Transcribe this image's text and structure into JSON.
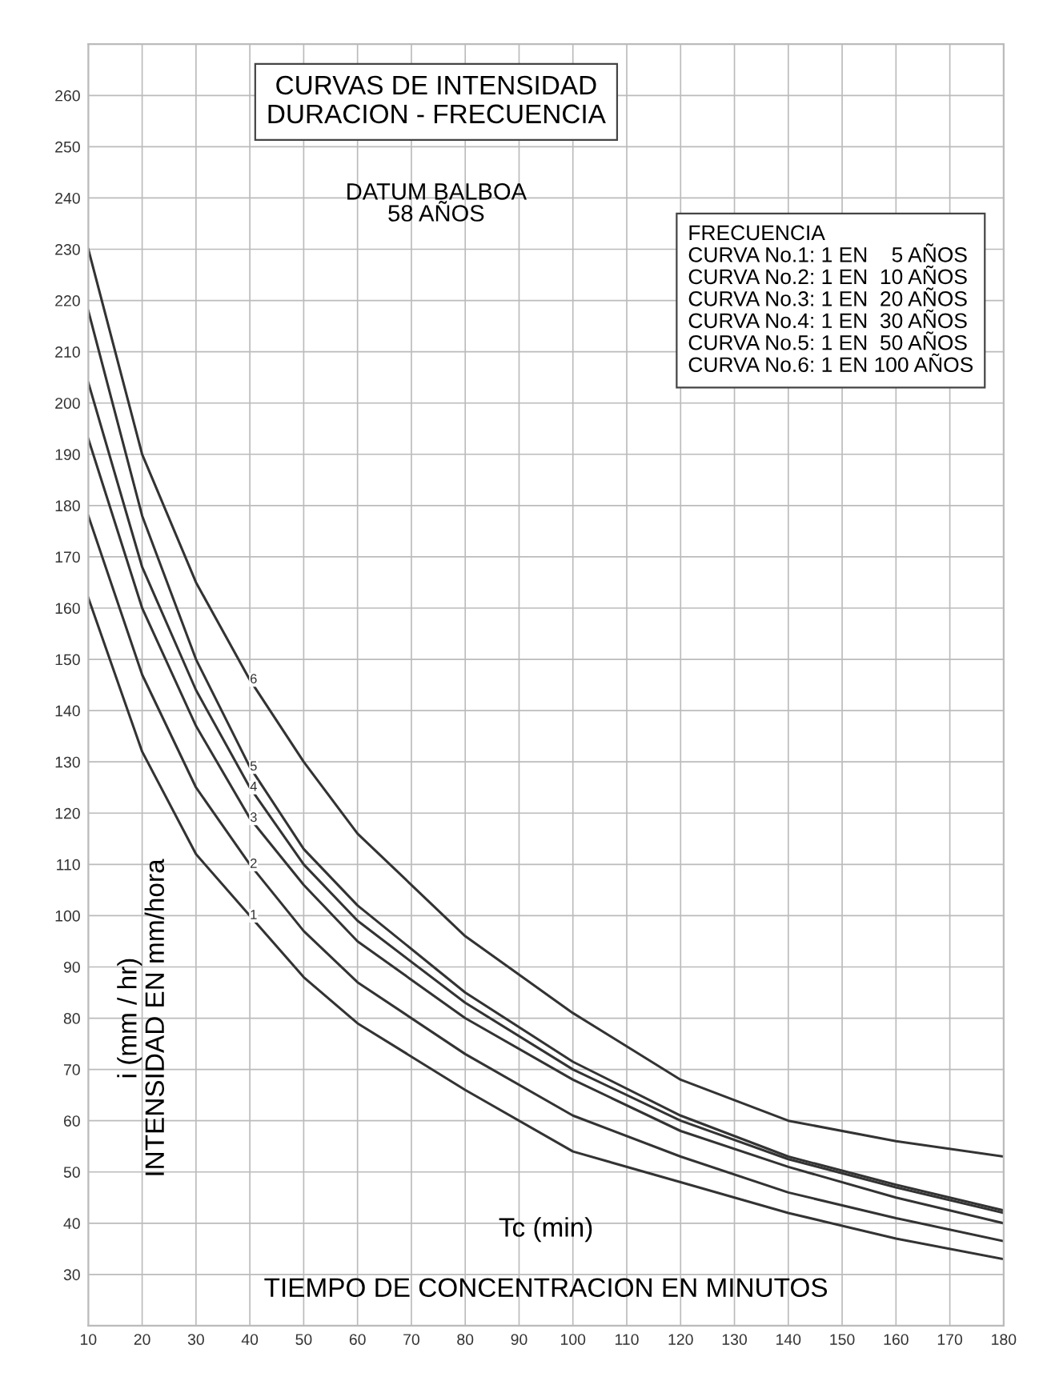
{
  "chart_data": {
    "type": "line",
    "title": "CURVAS DE INTENSIDAD\nDURACION - FRECUENCIA",
    "subtitle": "DATUM BALBOA\n58 AÑOS",
    "xlabel": "TIEMPO DE CONCENTRACION EN MINUTOS",
    "ylabel": "INTENSIDAD EN mm/hora",
    "annotations": [
      "Tc (min)",
      "i (mm / hr)",
      "FRECUENCIA\nCURVA No.1: 1 EN    5 AÑOS\nCURVA No.2: 1 EN  10 AÑOS\nCURVA No.3: 1 EN  20 AÑOS\nCURVA No.4: 1 EN  30 AÑOS\nCURVA No.5: 1 EN  50 AÑOS\nCURVA No.6: 1 EN 100 AÑOS"
    ],
    "x": [
      10,
      20,
      30,
      40,
      50,
      60,
      80,
      100,
      120,
      140,
      160,
      180
    ],
    "series": [
      {
        "name": "1",
        "color": "#333333",
        "values": [
          162,
          132,
          112,
          100,
          88,
          79,
          66,
          54,
          48,
          42,
          37,
          33
        ]
      },
      {
        "name": "2",
        "color": "#333333",
        "values": [
          178,
          147,
          125,
          110,
          97,
          87,
          73,
          61,
          53,
          46,
          41,
          36.5
        ]
      },
      {
        "name": "3",
        "color": "#333333",
        "values": [
          193,
          160,
          137,
          119,
          106,
          95,
          80,
          68,
          58,
          51,
          45,
          40
        ]
      },
      {
        "name": "4",
        "color": "#333333",
        "values": [
          204,
          168,
          144,
          125,
          110,
          99,
          83,
          70,
          60,
          52.5,
          47,
          42
        ]
      },
      {
        "name": "5",
        "color": "#333333",
        "values": [
          218,
          178,
          150,
          129,
          113,
          102,
          85,
          71.5,
          61,
          53,
          47.5,
          42.5
        ]
      },
      {
        "name": "6",
        "color": "#333333",
        "values": [
          230,
          190,
          165,
          146,
          130,
          116,
          96,
          81,
          68,
          60,
          56,
          53
        ]
      }
    ],
    "xlim": [
      10,
      180
    ],
    "xticks": [
      10,
      20,
      30,
      40,
      50,
      60,
      70,
      80,
      90,
      100,
      110,
      120,
      130,
      140,
      150,
      160,
      170,
      180
    ],
    "ylim": [
      20,
      270
    ],
    "yticks": [
      30,
      40,
      50,
      60,
      70,
      80,
      90,
      100,
      110,
      120,
      130,
      140,
      150,
      160,
      170,
      180,
      190,
      200,
      210,
      220,
      230,
      240,
      250,
      260
    ],
    "grid": true,
    "marker": "none",
    "line_style": "solid"
  }
}
